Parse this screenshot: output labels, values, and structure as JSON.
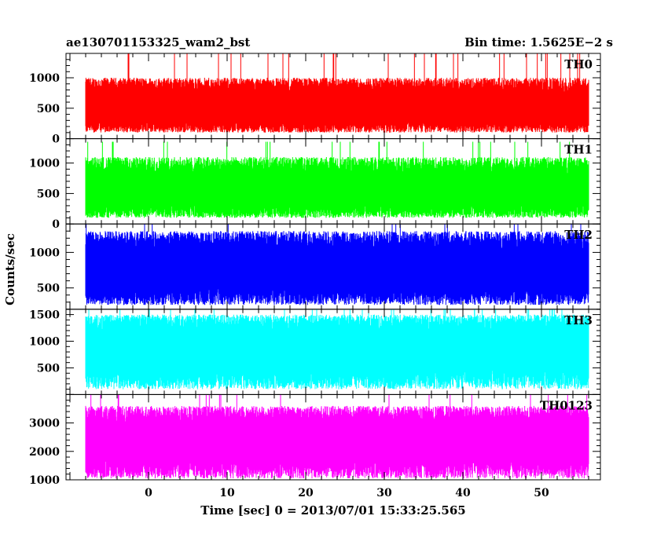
{
  "chart_data": {
    "type": "line",
    "title": "ae130701153325_wam2_bst",
    "subtitle": "Bin time: 1.5625E−2 s",
    "xlabel": "Time [sec] 0 = 2013/07/01 15:33:25.565",
    "ylabel": "Counts/sec",
    "xlim": [
      -10.5,
      57.5
    ],
    "x_ticks": [
      0,
      10,
      20,
      30,
      40,
      50
    ],
    "x_tick_labels": [
      "0",
      "10",
      "20",
      "30",
      "40",
      "50"
    ],
    "x_data_range": [
      -8,
      56
    ],
    "panels": [
      {
        "name": "TH0",
        "color": "#ff0000",
        "ylim": [
          0,
          1400
        ],
        "y_ticks": [
          0,
          500,
          1000
        ],
        "y_tick_labels": [
          "0",
          "500",
          "1000"
        ],
        "typical_min": 100,
        "typical_max": 1000,
        "spike_max": 1400,
        "mean": 480
      },
      {
        "name": "TH1",
        "color": "#00ff00",
        "ylim": [
          0,
          1400
        ],
        "y_ticks": [
          0,
          500,
          1000
        ],
        "y_tick_labels": [
          "0",
          "500",
          "1000"
        ],
        "typical_min": 100,
        "typical_max": 1100,
        "spike_max": 1350,
        "mean": 530
      },
      {
        "name": "TH2",
        "color": "#0000ff",
        "ylim": [
          200,
          1400
        ],
        "y_ticks": [
          500,
          1000
        ],
        "y_tick_labels": [
          "500",
          "1000"
        ],
        "typical_min": 260,
        "typical_max": 1300,
        "spike_max": 1400,
        "mean": 750
      },
      {
        "name": "TH3",
        "color": "#00ffff",
        "ylim": [
          0,
          1600
        ],
        "y_ticks": [
          500,
          1000,
          1500
        ],
        "y_tick_labels": [
          "500",
          "1000",
          "1500"
        ],
        "typical_min": 100,
        "typical_max": 1500,
        "spike_max": 1600,
        "mean": 900
      },
      {
        "name": "TH0123",
        "color": "#ff00ff",
        "ylim": [
          1000,
          4000
        ],
        "y_ticks": [
          1000,
          2000,
          3000
        ],
        "y_tick_labels": [
          "1000",
          "2000",
          "3000"
        ],
        "typical_min": 1050,
        "typical_max": 3600,
        "spike_max": 4000,
        "mean": 2400
      }
    ]
  }
}
